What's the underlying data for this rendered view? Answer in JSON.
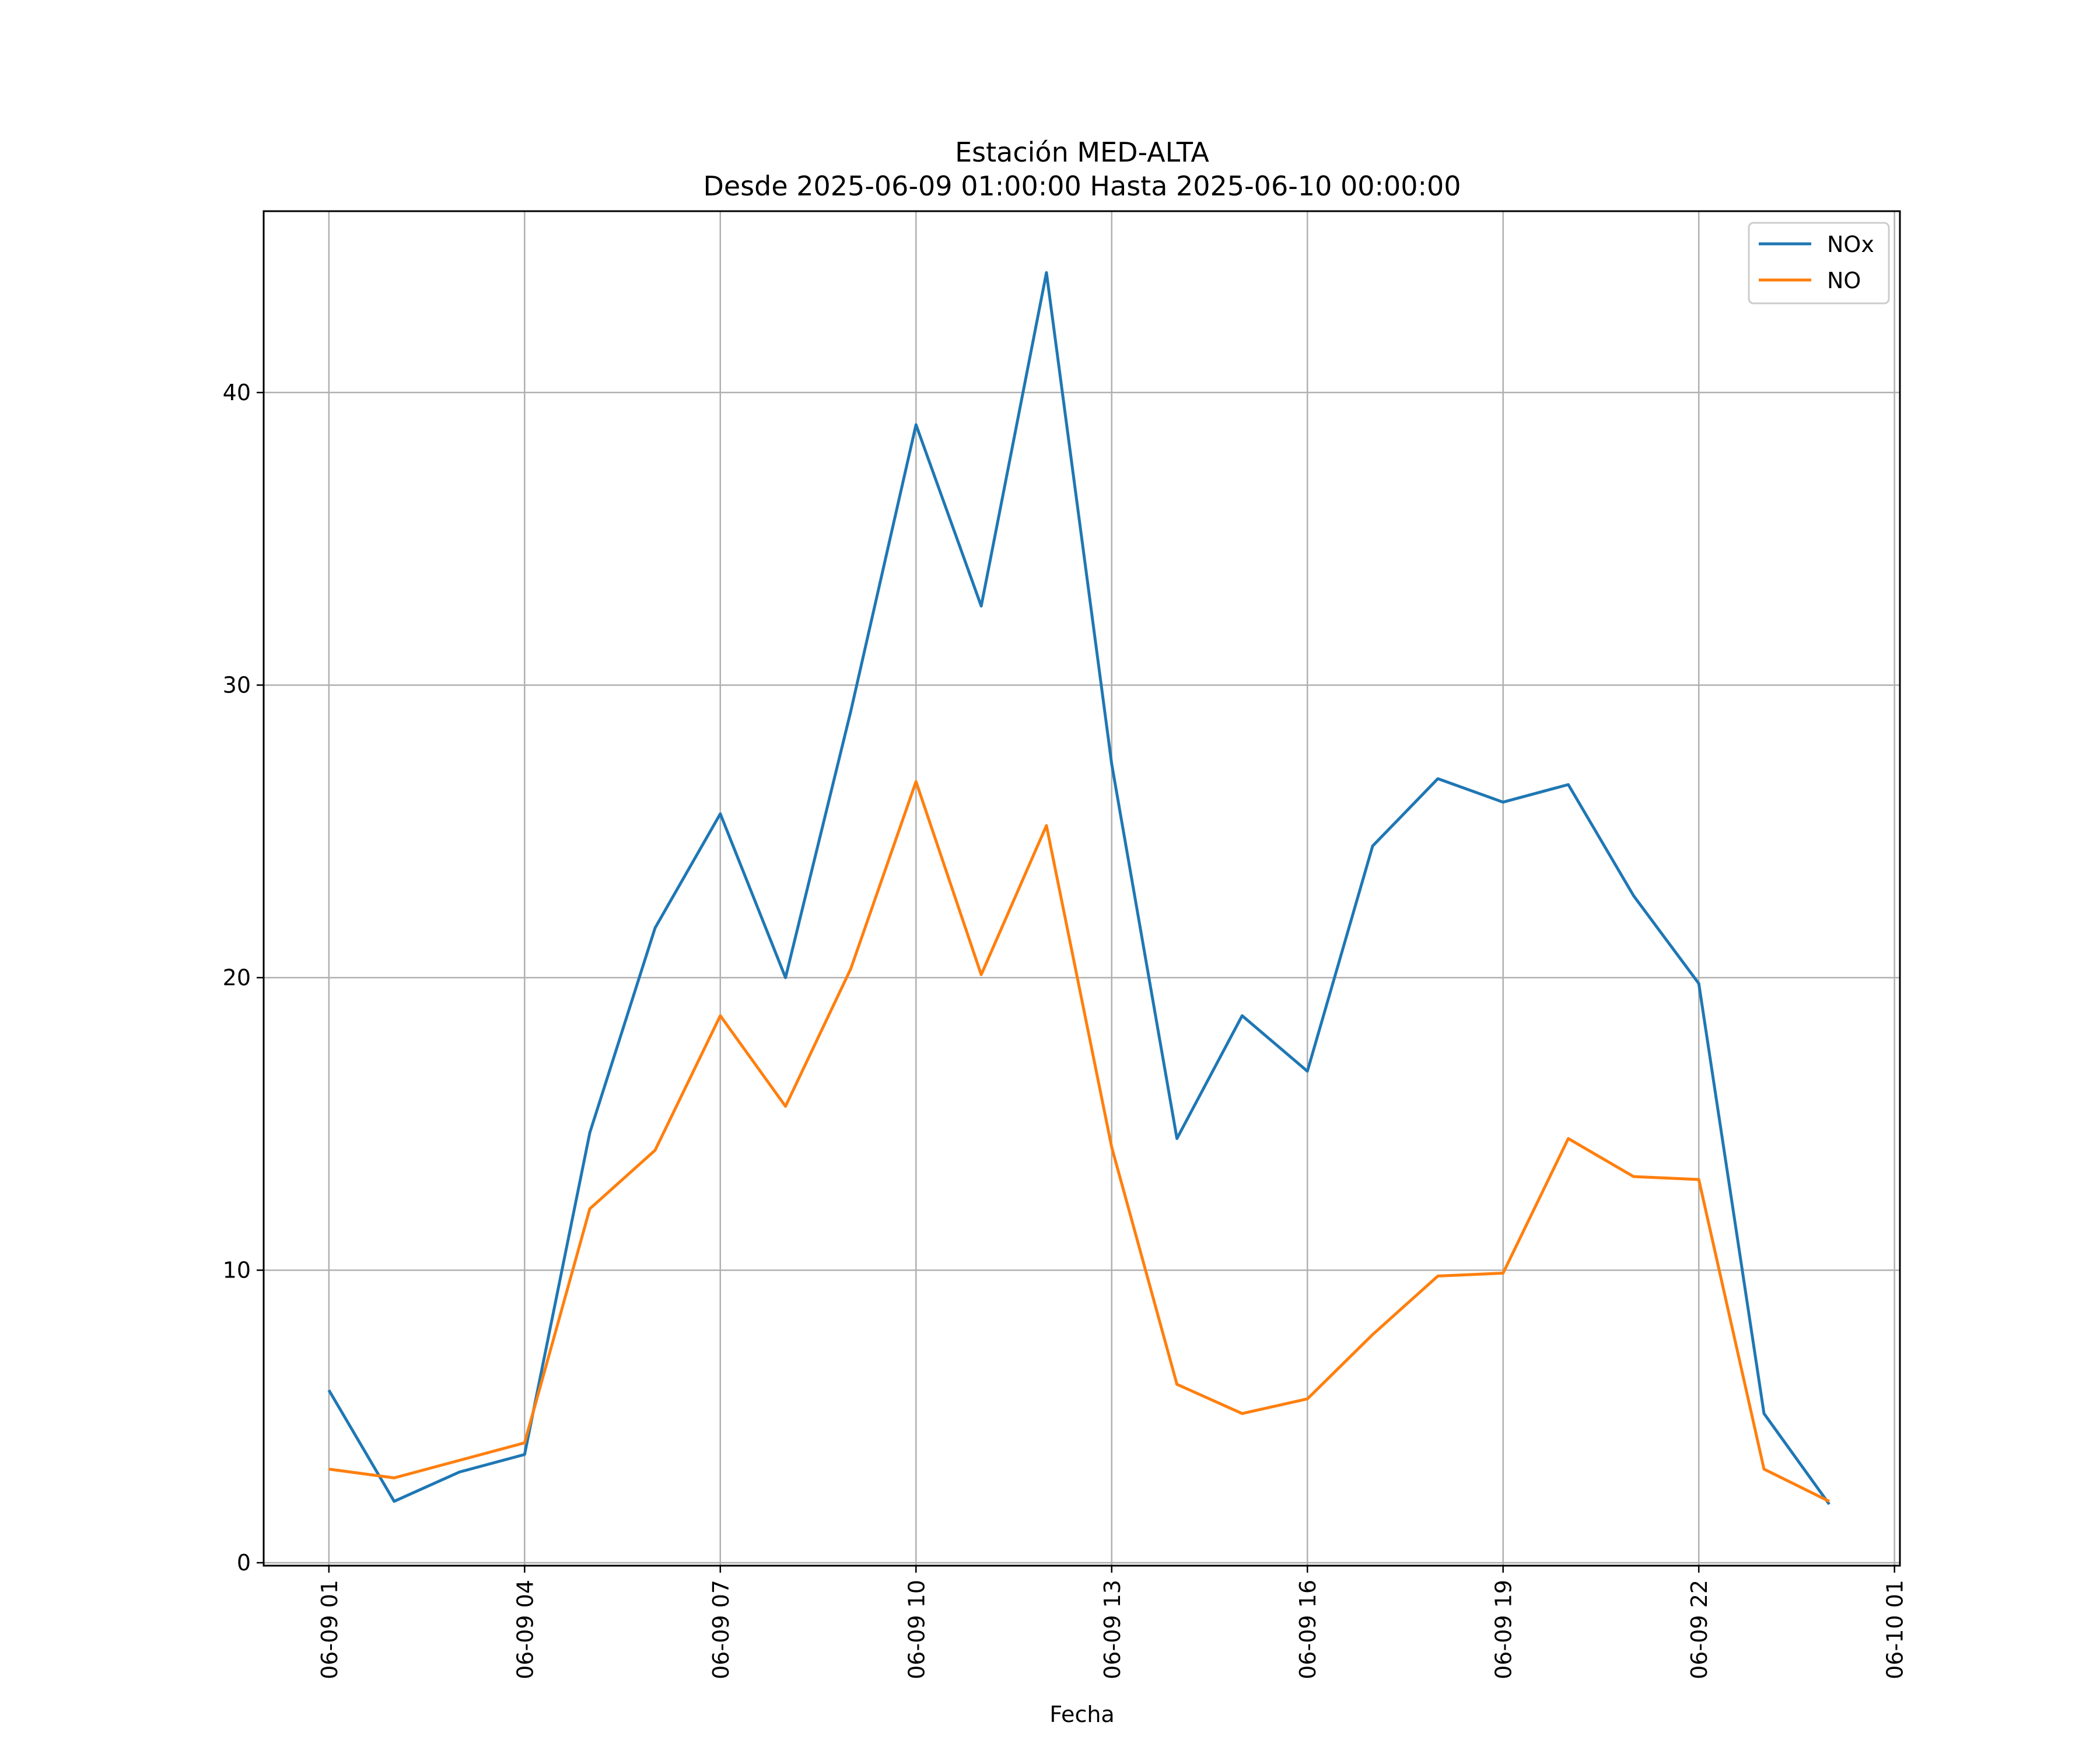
{
  "chart_data": {
    "type": "line",
    "title": "Estación MED-ALTA",
    "subtitle": "Desde 2025-06-09 01:00:00 Hasta 2025-06-10 00:00:00",
    "xlabel": "Fecha",
    "ylabel": "",
    "x": [
      "2025-06-09 01:00",
      "2025-06-09 02:00",
      "2025-06-09 03:00",
      "2025-06-09 04:00",
      "2025-06-09 05:00",
      "2025-06-09 06:00",
      "2025-06-09 07:00",
      "2025-06-09 08:00",
      "2025-06-09 09:00",
      "2025-06-09 10:00",
      "2025-06-09 11:00",
      "2025-06-09 12:00",
      "2025-06-09 13:00",
      "2025-06-09 14:00",
      "2025-06-09 15:00",
      "2025-06-09 16:00",
      "2025-06-09 17:00",
      "2025-06-09 18:00",
      "2025-06-09 19:00",
      "2025-06-09 20:00",
      "2025-06-09 21:00",
      "2025-06-09 22:00",
      "2025-06-09 23:00",
      "2025-06-10 00:00"
    ],
    "xlim": [
      "2025-06-09 00:00",
      "2025-06-10 01:05"
    ],
    "ylim": [
      -0.1,
      46.2
    ],
    "xticks": [
      {
        "value": "2025-06-09 01:00",
        "label": "06-09 01"
      },
      {
        "value": "2025-06-09 04:00",
        "label": "06-09 04"
      },
      {
        "value": "2025-06-09 07:00",
        "label": "06-09 07"
      },
      {
        "value": "2025-06-09 10:00",
        "label": "06-09 10"
      },
      {
        "value": "2025-06-09 13:00",
        "label": "06-09 13"
      },
      {
        "value": "2025-06-09 16:00",
        "label": "06-09 16"
      },
      {
        "value": "2025-06-09 19:00",
        "label": "06-09 19"
      },
      {
        "value": "2025-06-09 22:00",
        "label": "06-09 22"
      },
      {
        "value": "2025-06-10 01:00",
        "label": "06-10 01"
      }
    ],
    "yticks": [
      0,
      10,
      20,
      30,
      40
    ],
    "grid": true,
    "legend_position": "top-right",
    "series": [
      {
        "name": "NOx",
        "color": "#1f77b4",
        "values": [
          5.9,
          2.1,
          3.1,
          3.7,
          14.7,
          21.7,
          25.6,
          20.0,
          29.1,
          38.9,
          32.7,
          44.1,
          27.3,
          14.5,
          18.7,
          16.8,
          24.5,
          26.8,
          26.0,
          26.6,
          22.8,
          19.8,
          5.1,
          2.0
        ]
      },
      {
        "name": "NO",
        "color": "#ff7f0e",
        "values": [
          3.2,
          2.9,
          3.5,
          4.1,
          12.1,
          14.1,
          18.7,
          15.6,
          20.3,
          26.7,
          20.1,
          25.2,
          14.2,
          6.1,
          5.1,
          5.6,
          7.8,
          9.8,
          9.9,
          14.5,
          13.2,
          13.1,
          3.2,
          2.1
        ]
      }
    ]
  }
}
